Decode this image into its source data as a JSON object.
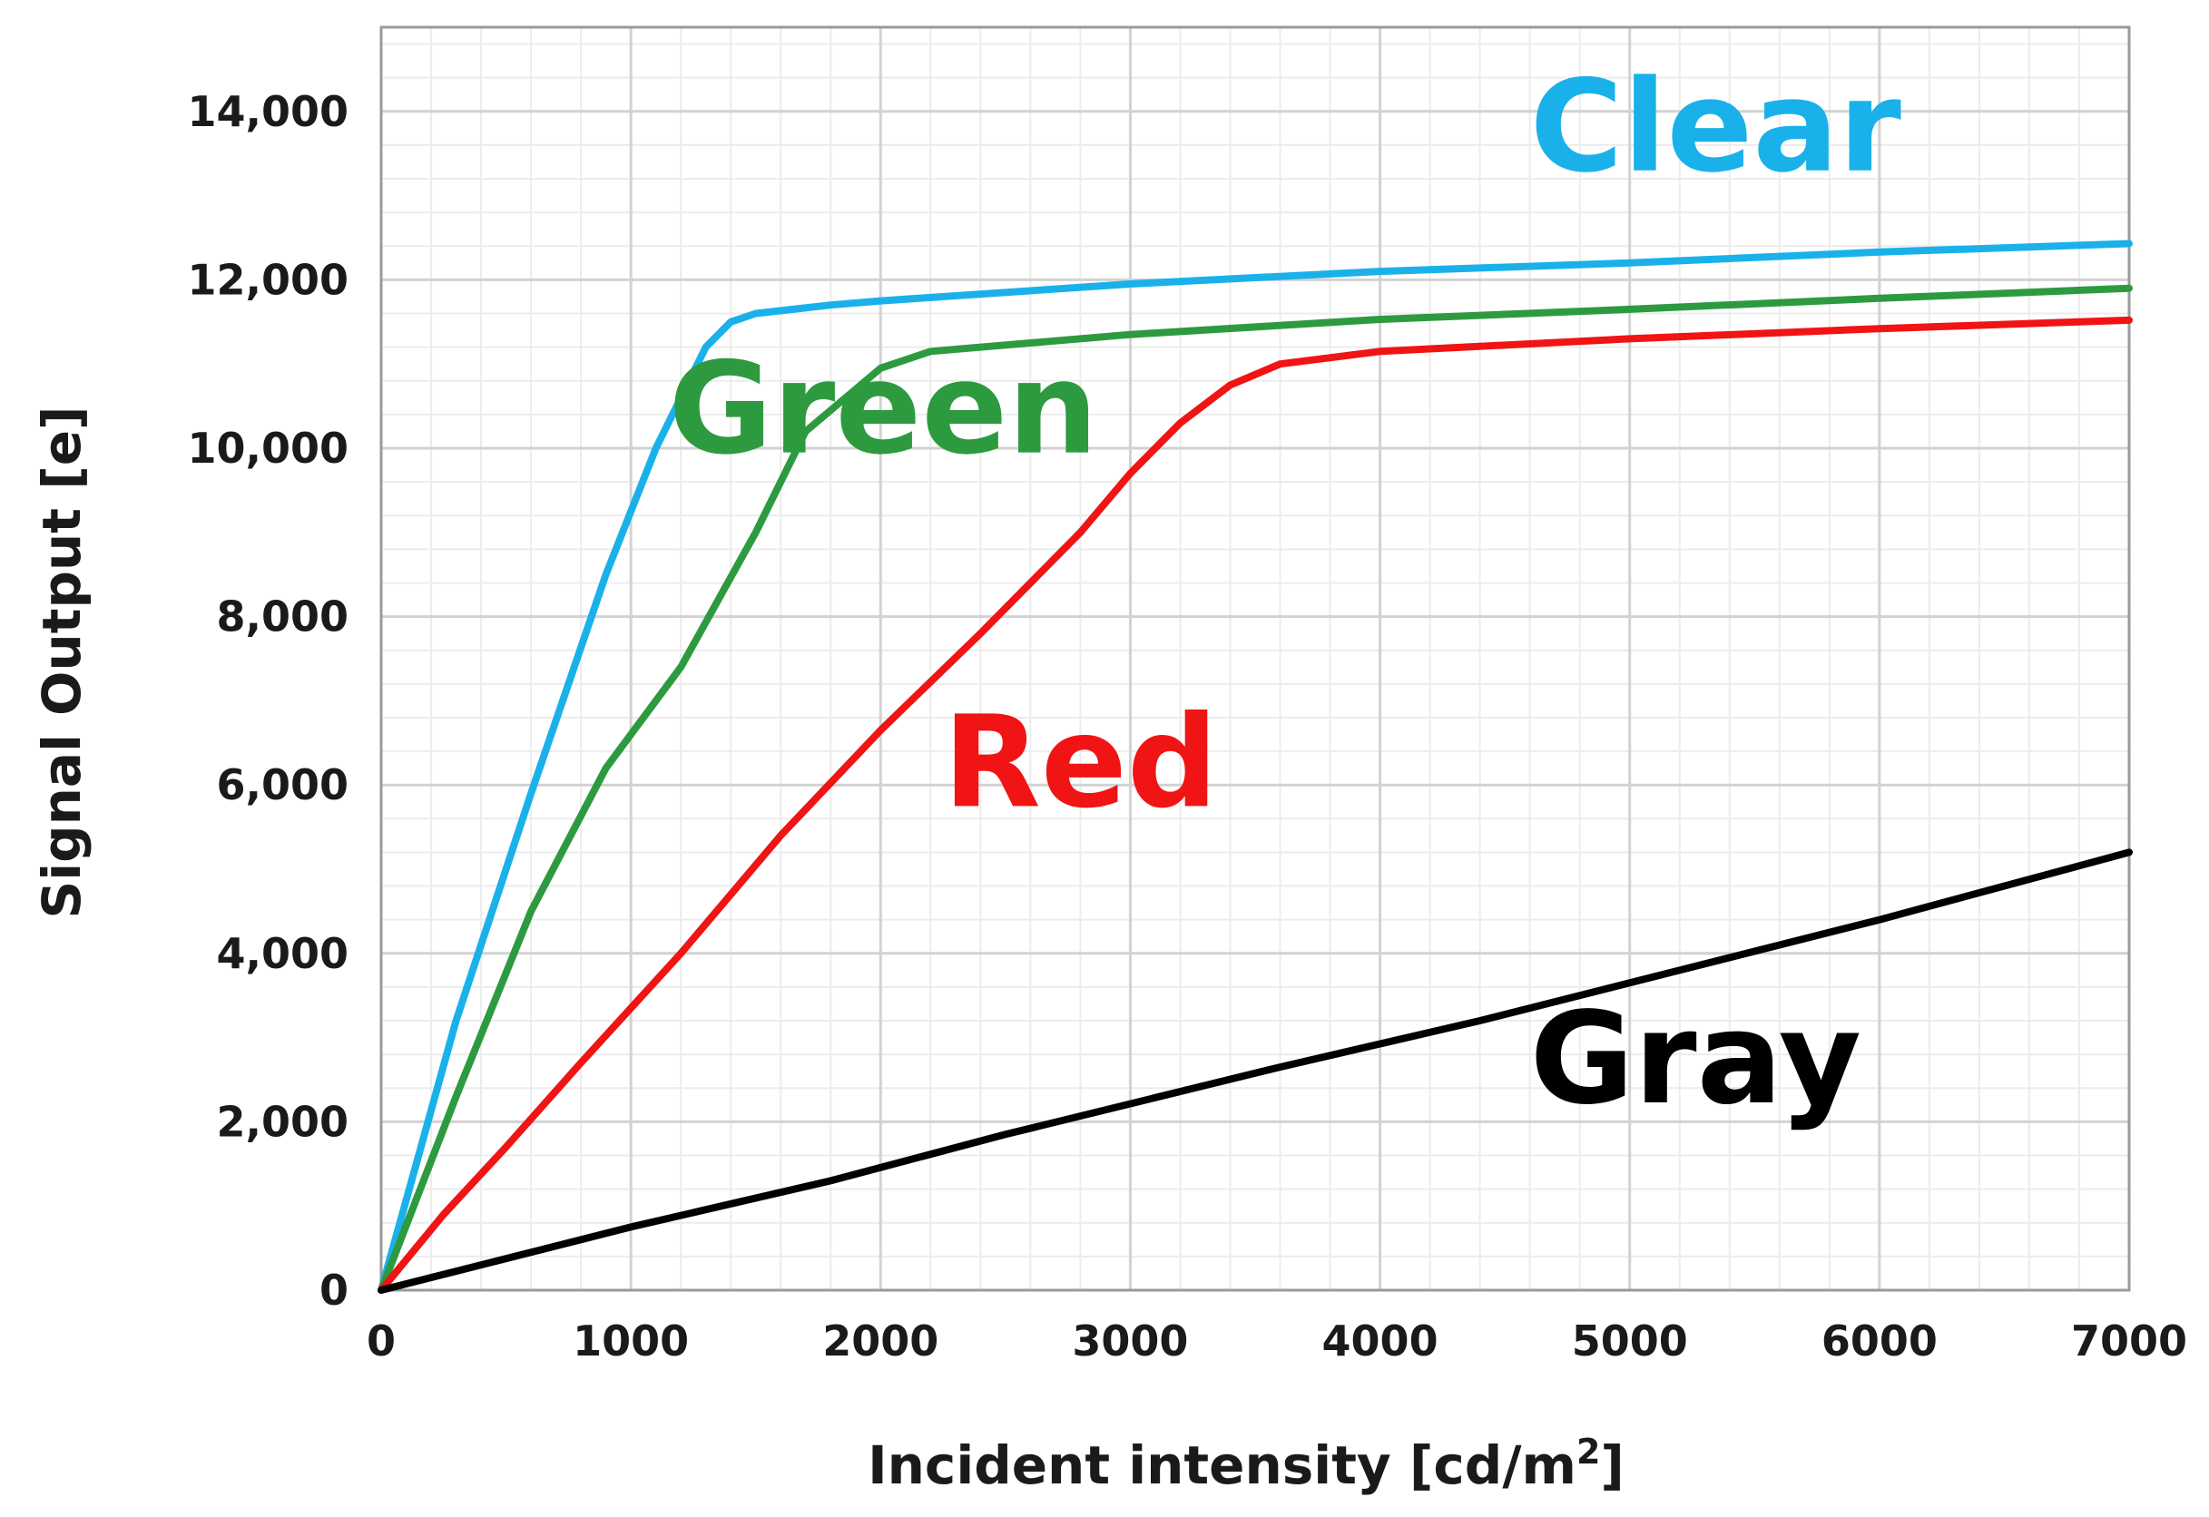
{
  "chart_data": {
    "type": "line",
    "xlabel": "Incident intensity [cd/m",
    "xlabel_sup": "2",
    "xlabel_end": "]",
    "ylabel": "Signal Output [e]",
    "xlim": [
      0,
      7000
    ],
    "ylim": [
      0,
      15000
    ],
    "x_ticks": [
      0,
      1000,
      2000,
      3000,
      4000,
      5000,
      6000,
      7000
    ],
    "x_tick_labels": [
      "0",
      "1000",
      "2000",
      "3000",
      "4000",
      "5000",
      "6000",
      "7000"
    ],
    "y_ticks": [
      0,
      2000,
      4000,
      6000,
      8000,
      10000,
      12000,
      14000
    ],
    "y_tick_labels": [
      "0",
      "2,000",
      "4,000",
      "6,000",
      "8,000",
      "10,000",
      "12,000",
      "14,000"
    ],
    "x_minor_step": 200,
    "y_minor_step": 400,
    "grid": true,
    "legend": "labels placed next to lines",
    "series": [
      {
        "name": "Clear",
        "color": "#1ab1ea",
        "points": [
          [
            0,
            0
          ],
          [
            300,
            3200
          ],
          [
            600,
            5900
          ],
          [
            900,
            8500
          ],
          [
            1100,
            10000
          ],
          [
            1300,
            11200
          ],
          [
            1400,
            11500
          ],
          [
            1500,
            11600
          ],
          [
            1800,
            11700
          ],
          [
            2000,
            11750
          ],
          [
            3000,
            11950
          ],
          [
            4000,
            12100
          ],
          [
            5000,
            12200
          ],
          [
            6000,
            12330
          ],
          [
            7000,
            12430
          ]
        ]
      },
      {
        "name": "Green",
        "color": "#2e9a40",
        "points": [
          [
            0,
            0
          ],
          [
            300,
            2300
          ],
          [
            600,
            4500
          ],
          [
            900,
            6200
          ],
          [
            1200,
            7400
          ],
          [
            1500,
            9000
          ],
          [
            1700,
            10200
          ],
          [
            1900,
            10700
          ],
          [
            2000,
            10950
          ],
          [
            2200,
            11150
          ],
          [
            3000,
            11350
          ],
          [
            4000,
            11530
          ],
          [
            5000,
            11650
          ],
          [
            6000,
            11780
          ],
          [
            7000,
            11900
          ]
        ]
      },
      {
        "name": "Red",
        "color": "#f01414",
        "points": [
          [
            0,
            0
          ],
          [
            250,
            900
          ],
          [
            500,
            1700
          ],
          [
            800,
            2700
          ],
          [
            1200,
            4000
          ],
          [
            1600,
            5400
          ],
          [
            2000,
            6650
          ],
          [
            2400,
            7800
          ],
          [
            2800,
            9000
          ],
          [
            3000,
            9700
          ],
          [
            3200,
            10300
          ],
          [
            3400,
            10750
          ],
          [
            3600,
            11000
          ],
          [
            4000,
            11150
          ],
          [
            5000,
            11300
          ],
          [
            6000,
            11420
          ],
          [
            7000,
            11520
          ]
        ]
      },
      {
        "name": "Gray",
        "color": "#000000",
        "points": [
          [
            0,
            0
          ],
          [
            1000,
            750
          ],
          [
            1800,
            1300
          ],
          [
            2500,
            1850
          ],
          [
            3600,
            2650
          ],
          [
            4400,
            3200
          ],
          [
            5000,
            3650
          ],
          [
            6000,
            4400
          ],
          [
            7000,
            5200
          ]
        ]
      }
    ],
    "series_label_positions": [
      {
        "name": "Clear",
        "x": 4600,
        "y": 13300
      },
      {
        "name": "Green",
        "x": 1150,
        "y": 9950
      },
      {
        "name": "Red",
        "x": 2250,
        "y": 5750
      },
      {
        "name": "Gray",
        "x": 4600,
        "y": 2230
      }
    ]
  }
}
